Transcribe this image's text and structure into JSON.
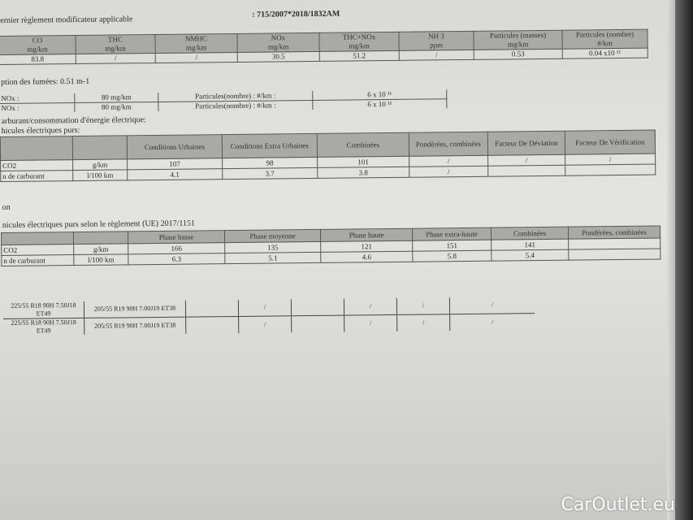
{
  "header": {
    "regulation_label": "ernier règlement modificateur applicable",
    "regulation_value": ": 715/2007*2018/1832AM"
  },
  "emissions": {
    "headers": [
      [
        "CO",
        "mg/km"
      ],
      [
        "THC",
        "mg/km"
      ],
      [
        "NMHC",
        "mg/km"
      ],
      [
        "NOx",
        "mg/km"
      ],
      [
        "THC+NOx",
        "mg/km"
      ],
      [
        "NH 3",
        "ppm"
      ],
      [
        "Particules (masses)",
        "mg/km"
      ],
      [
        "Particules (nombre)",
        "#/km"
      ]
    ],
    "values": [
      "83.8",
      "/",
      "/",
      "30.5",
      "51.2",
      "/",
      "0.53",
      "0.04 x10 ¹¹"
    ]
  },
  "smoke": "ption des fumées: 0.51 m-1",
  "limits": [
    [
      "NOx :",
      "80 mg/km",
      "Particules(nombre) : #/km :",
      "6 x 10 ¹¹"
    ],
    [
      "NOx :",
      "80 mg/km",
      "Particules(nombre) : #/km :",
      "6 x 10 ¹¹"
    ]
  ],
  "consumption_title": "arburant/consommation d'énergie électrique:",
  "ev_title": "hicules électriques purs:",
  "nedc": {
    "headers": [
      "",
      "",
      "Conditions Urbaines",
      "Conditions Extra Urbaines",
      "Combinées",
      "Pondérées, combinées",
      "Facteur De Déviation",
      "Facteur De Vérification"
    ],
    "rows": [
      [
        "CO2",
        "g/km",
        "107",
        "98",
        "101",
        "/",
        "/",
        "/"
      ],
      [
        "n de carburant",
        "l/100 km",
        "4.1",
        "3.7",
        "3.8",
        "/",
        "",
        ""
      ]
    ]
  },
  "on_label": "on",
  "wltp_title": "nicules électriques purs selon le règlement (UE) 2017/1151",
  "wltp": {
    "headers": [
      "",
      "",
      "Phase basse",
      "Phase moyenne",
      "Phase haute",
      "Phase extra-haute",
      "Combinées",
      "Pondérées, combinées"
    ],
    "rows": [
      [
        "CO2",
        "g/km",
        "166",
        "135",
        "121",
        "151",
        "141",
        ""
      ],
      [
        "n de carburant",
        "l/100 km",
        "6.3",
        "5.1",
        "4.6",
        "5.8",
        "5.4",
        ""
      ]
    ]
  },
  "tyres": {
    "rows": [
      [
        "225/55 R18 90H 7.50J18 ET49",
        "205/55 R19 90H 7.00J19 ET38",
        "",
        "/",
        "",
        "/",
        "/",
        "/"
      ],
      [
        "225/55 R18 90H 7.50J18 ET49",
        "205/55 R19 90H 7.00J19 ET38",
        "",
        "/",
        "",
        "/",
        "/",
        "/"
      ]
    ]
  },
  "watermark": "CarOutlet.eu"
}
